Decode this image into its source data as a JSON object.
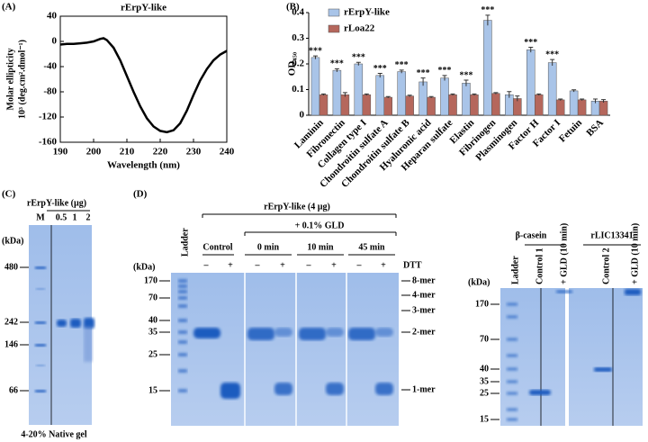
{
  "panel_labels": [
    "(A)",
    "(B)",
    "(C)",
    "(D)"
  ],
  "chart_data": [
    {
      "type": "line",
      "title": "rErpY-like",
      "xlabel": "Wavelength (nm)",
      "ylabel": [
        "Molar ellipticity",
        "10³ (deg.cm².dmol⁻¹)"
      ],
      "x": [
        190,
        192,
        194,
        196,
        198,
        200,
        202,
        203,
        204,
        206,
        208,
        210,
        212,
        214,
        216,
        218,
        220,
        222,
        224,
        226,
        228,
        230,
        232,
        234,
        236,
        238,
        240
      ],
      "values": [
        -5,
        -4,
        -4,
        -3,
        -2,
        0,
        4,
        5,
        2,
        -10,
        -30,
        -55,
        -80,
        -103,
        -122,
        -135,
        -142,
        -144,
        -141,
        -130,
        -110,
        -85,
        -62,
        -44,
        -30,
        -21,
        -15
      ],
      "color": "#000000",
      "xlim": [
        190,
        240
      ],
      "xticks": [
        190,
        200,
        210,
        220,
        230,
        240
      ],
      "ylim": [
        -160,
        40
      ],
      "yticks": [
        -160,
        -120,
        -80,
        -40,
        0,
        40
      ]
    },
    {
      "type": "bar",
      "ylabel": "OD₄₅₀",
      "legend": "upper-left",
      "categories": [
        "Laminin",
        "Fibronectin",
        "Collagen type I",
        "Chondroitin sulfate A",
        "Chondroitin sulfate B",
        "Hyaluronic acid",
        "Heparan sulfate",
        "Elastin",
        "Fibrinogen",
        "Plasminogen",
        "Factor H",
        "Factor I",
        "Fetuin",
        "BSA"
      ],
      "series": [
        {
          "name": "rErpY-like",
          "color": "#a9c4e8",
          "values": [
            0.225,
            0.175,
            0.2,
            0.155,
            0.17,
            0.13,
            0.145,
            0.125,
            0.37,
            0.08,
            0.255,
            0.205,
            0.095,
            0.055
          ],
          "errors": [
            0.006,
            0.006,
            0.006,
            0.008,
            0.006,
            0.015,
            0.01,
            0.012,
            0.02,
            0.012,
            0.01,
            0.012,
            0.004,
            0.008
          ]
        },
        {
          "name": "rLoa22",
          "color": "#b5675c",
          "values": [
            0.08,
            0.08,
            0.08,
            0.07,
            0.075,
            0.07,
            0.08,
            0.08,
            0.085,
            0.065,
            0.08,
            0.06,
            0.06,
            0.055
          ],
          "errors": [
            0.003,
            0.008,
            0.003,
            0.003,
            0.003,
            0.003,
            0.003,
            0.003,
            0.003,
            0.01,
            0.003,
            0.003,
            0.003,
            0.006
          ]
        }
      ],
      "significance": [
        "***",
        "***",
        "***",
        "***",
        "***",
        "***",
        "***",
        "***",
        "***",
        null,
        "***",
        "***",
        null,
        null
      ],
      "ylim": [
        0,
        0.4
      ],
      "yticks": [
        0,
        0.1,
        0.2,
        0.3,
        0.4
      ]
    }
  ],
  "gel_c": {
    "title": "rErpY-like (µg)",
    "lanes": [
      "M",
      "0.5",
      "1",
      "2"
    ],
    "unit": "(kDa)",
    "markers": [
      480,
      242,
      146,
      66
    ],
    "caption": "4-20% Native gel"
  },
  "gel_d": {
    "title": "rErpY-like (4 µg)",
    "treatment": "+ 0.1% GLD",
    "ladder": "Ladder",
    "control": "Control",
    "times": [
      "0 min",
      "10 min",
      "45 min"
    ],
    "dtt_signs": [
      "–",
      "+",
      "–",
      "+",
      "–",
      "+",
      "–",
      "+"
    ],
    "dtt": "DTT",
    "unit": "(kDa)",
    "markers": [
      170,
      70,
      40,
      35,
      25,
      15
    ],
    "oligomers": [
      "8-mer",
      "4-mer",
      "3-mer",
      "2-mer",
      "1-mer"
    ]
  },
  "gel_e": {
    "groups": [
      "β-casein",
      "rLIC13341"
    ],
    "lanes": [
      "Ladder",
      "Control 1",
      "+ GLD (10 min)",
      "Control 2",
      "+ GLD (10 min)"
    ],
    "unit": "(kDa)",
    "markers": [
      170,
      70,
      40,
      35,
      25,
      15
    ]
  }
}
